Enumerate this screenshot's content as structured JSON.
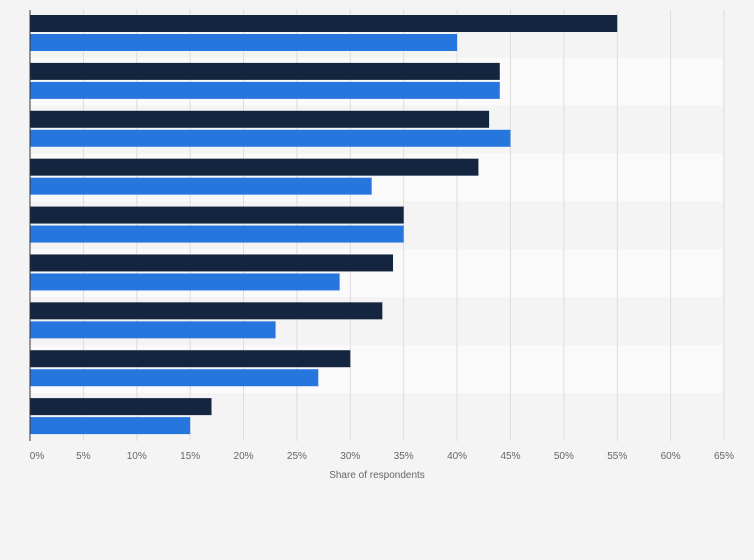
{
  "chart_data": {
    "type": "bar",
    "orientation": "horizontal",
    "categories": [
      "",
      "",
      "",
      "",
      "",
      "",
      "",
      "",
      ""
    ],
    "series": [
      {
        "values": [
          55,
          44,
          43,
          42,
          35,
          34,
          33,
          30,
          17
        ],
        "color": "#13253f"
      },
      {
        "values": [
          40,
          44,
          45,
          32,
          35,
          29,
          23,
          27,
          15
        ],
        "color": "#2776dd"
      }
    ],
    "xlim": [
      0,
      65
    ],
    "xticks": [
      "0%",
      "5%",
      "10%",
      "15%",
      "20%",
      "25%",
      "30%",
      "35%",
      "40%",
      "45%",
      "50%",
      "55%",
      "60%",
      "65%"
    ],
    "xlabel": "Share of respondents",
    "grid": true,
    "legend": "none"
  }
}
